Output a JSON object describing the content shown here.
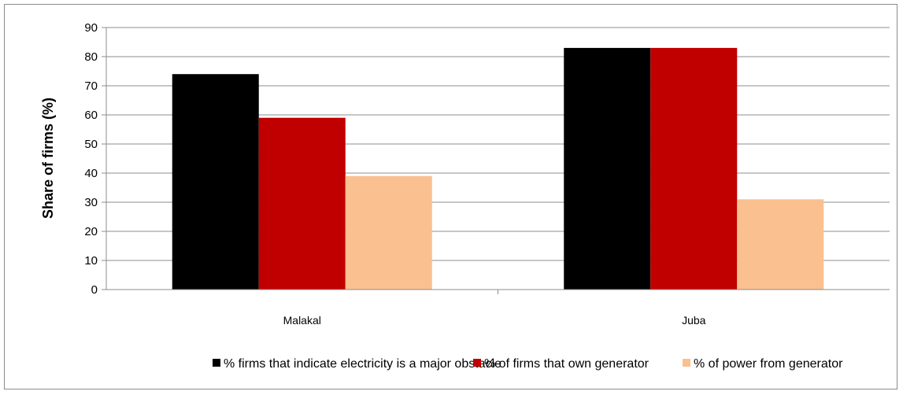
{
  "chart_data": {
    "type": "bar",
    "categories": [
      "Malakal",
      "Juba"
    ],
    "series": [
      {
        "name": "% firms that indicate electricity is a major obstacle",
        "values": [
          74,
          83
        ],
        "color": "#000000"
      },
      {
        "name": "% of firms that own generator",
        "values": [
          59,
          83
        ],
        "color": "#c00000"
      },
      {
        "name": "% of power from generator",
        "values": [
          39,
          31
        ],
        "color": "#fac090"
      }
    ],
    "title": "",
    "xlabel": "",
    "ylabel": "Share of firms (%)",
    "ylim": [
      0,
      90
    ],
    "yticks": [
      "0",
      "10",
      "20",
      "30",
      "40",
      "50",
      "60",
      "70",
      "80",
      "90"
    ],
    "grid": true,
    "legend": "bottom"
  }
}
